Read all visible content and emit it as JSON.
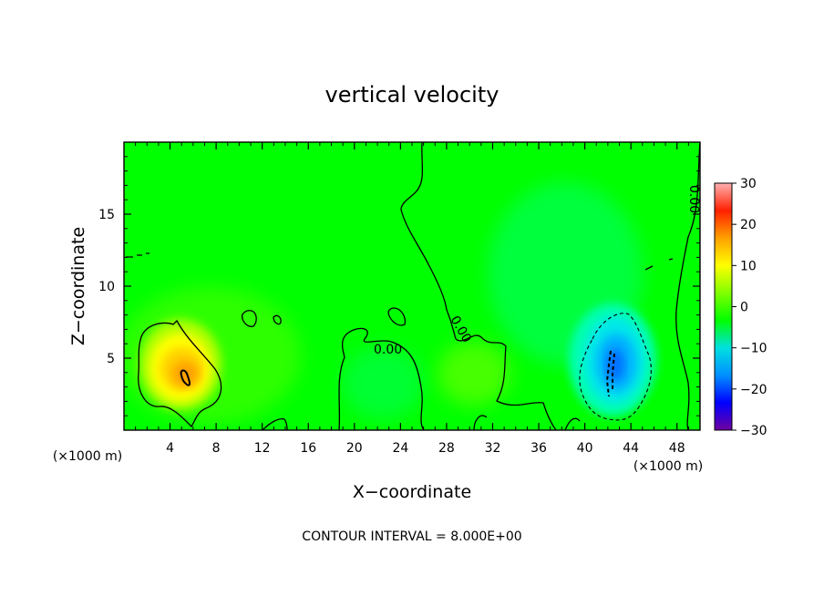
{
  "chart_data": {
    "type": "heatmap",
    "title": "vertical velocity",
    "xlabel": "X−coordinate",
    "ylabel": "Z−coordinate",
    "x_unit_left": "(×1000 m)",
    "x_unit_right": "(×1000 m)",
    "xlim": [
      0,
      50
    ],
    "ylim": [
      0,
      20
    ],
    "xticks": [
      4,
      8,
      12,
      16,
      20,
      24,
      28,
      32,
      36,
      40,
      44,
      48
    ],
    "yticks": [
      5,
      10,
      15
    ],
    "grid": false,
    "colorbar": {
      "ticks": [
        30,
        20,
        10,
        0,
        -10,
        -20,
        -30
      ],
      "tick_labels": [
        "30",
        "20",
        "10",
        "0",
        "−10",
        "−20",
        "−30"
      ],
      "range": [
        -30,
        30
      ],
      "colors": [
        "#7000a0",
        "#0000ff",
        "#0090ff",
        "#00e0e0",
        "#00ff00",
        "#80ff00",
        "#ffff00",
        "#ffa000",
        "#ff2000",
        "#ffb0b0"
      ]
    },
    "background_value": 0,
    "features": [
      {
        "name": "updraft",
        "x": 5.2,
        "z": 3.9,
        "peak": 16
      },
      {
        "name": "downdraft",
        "x": 42.5,
        "z": 4.8,
        "peak": -15
      },
      {
        "name": "weak-updraft",
        "x": 30,
        "z": 4,
        "peak": 4
      },
      {
        "name": "weak-downdraft",
        "x": 22,
        "z": 3,
        "peak": -4
      }
    ],
    "contour_labels": [
      "0.00",
      "0.00",
      "0.00"
    ],
    "contour_interval_text": "CONTOUR INTERVAL = 8.000E+00"
  },
  "colors": {
    "background": "#ffffff",
    "field_zero": "#00ff00"
  }
}
